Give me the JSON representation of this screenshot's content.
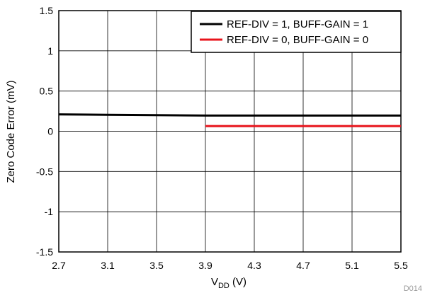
{
  "chart_data": {
    "type": "line",
    "xlabel": {
      "main": "V",
      "sub": "DD",
      "unit": " (V)"
    },
    "ylabel": "Zero Code Error (mV)",
    "xlim": [
      2.7,
      5.5
    ],
    "ylim": [
      -1.5,
      1.5
    ],
    "x_ticks": [
      "2.7",
      "3.1",
      "3.5",
      "3.9",
      "4.3",
      "4.7",
      "5.1",
      "5.5"
    ],
    "y_ticks": [
      "1.5",
      "1",
      "0.5",
      "0",
      "-0.5",
      "-1",
      "-1.5"
    ],
    "grid": true,
    "legend_position": "top-right",
    "series": [
      {
        "name": "REF-DIV = 1, BUFF-GAIN = 1",
        "color": "#000000",
        "x": [
          2.7,
          3.1,
          3.5,
          3.9,
          4.3,
          4.7,
          5.1,
          5.5
        ],
        "y": [
          0.21,
          0.205,
          0.2,
          0.195,
          0.195,
          0.195,
          0.195,
          0.195
        ]
      },
      {
        "name": "REF-DIV = 0, BUFF-GAIN = 0",
        "color": "#e8141c",
        "x": [
          3.9,
          4.3,
          4.7,
          5.1,
          5.5
        ],
        "y": [
          0.065,
          0.065,
          0.065,
          0.065,
          0.065
        ]
      }
    ],
    "figure_code": "D014"
  }
}
